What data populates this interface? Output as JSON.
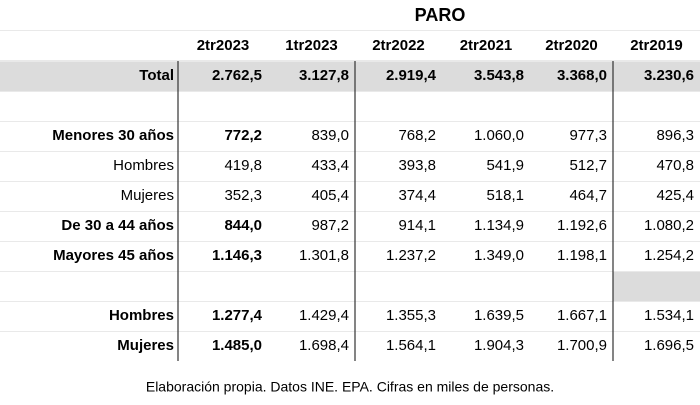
{
  "title": "PARO",
  "table": {
    "header": [
      "2tr2023",
      "1tr2023",
      "2tr2022",
      "2tr2021",
      "2tr2020",
      "2tr2019"
    ],
    "rows": [
      [
        "Total",
        "2.762,5",
        "3.127,8",
        "2.919,4",
        "3.543,8",
        "3.368,0",
        "3.230,6"
      ],
      [
        "Menores 30 años",
        "772,2",
        "839,0",
        "768,2",
        "1.060,0",
        "977,3",
        "896,3"
      ],
      [
        "Hombres",
        "419,8",
        "433,4",
        "393,8",
        "541,9",
        "512,7",
        "470,8"
      ],
      [
        "Mujeres",
        "352,3",
        "405,4",
        "374,4",
        "518,1",
        "464,7",
        "425,4"
      ],
      [
        "De 30 a 44 años",
        "844,0",
        "987,2",
        "914,1",
        "1.134,9",
        "1.192,6",
        "1.080,2"
      ],
      [
        "Mayores 45 años",
        "1.146,3",
        "1.301,8",
        "1.237,2",
        "1.349,0",
        "1.198,1",
        "1.254,2"
      ],
      [
        "Hombres",
        "1.277,4",
        "1.429,4",
        "1.355,3",
        "1.639,5",
        "1.667,1",
        "1.534,1"
      ],
      [
        "Mujeres",
        "1.485,0",
        "1.698,4",
        "1.564,1",
        "1.904,3",
        "1.700,9",
        "1.696,5"
      ]
    ]
  },
  "caption": "Elaboración propia. Datos INE. EPA. Cifras en miles de personas."
}
